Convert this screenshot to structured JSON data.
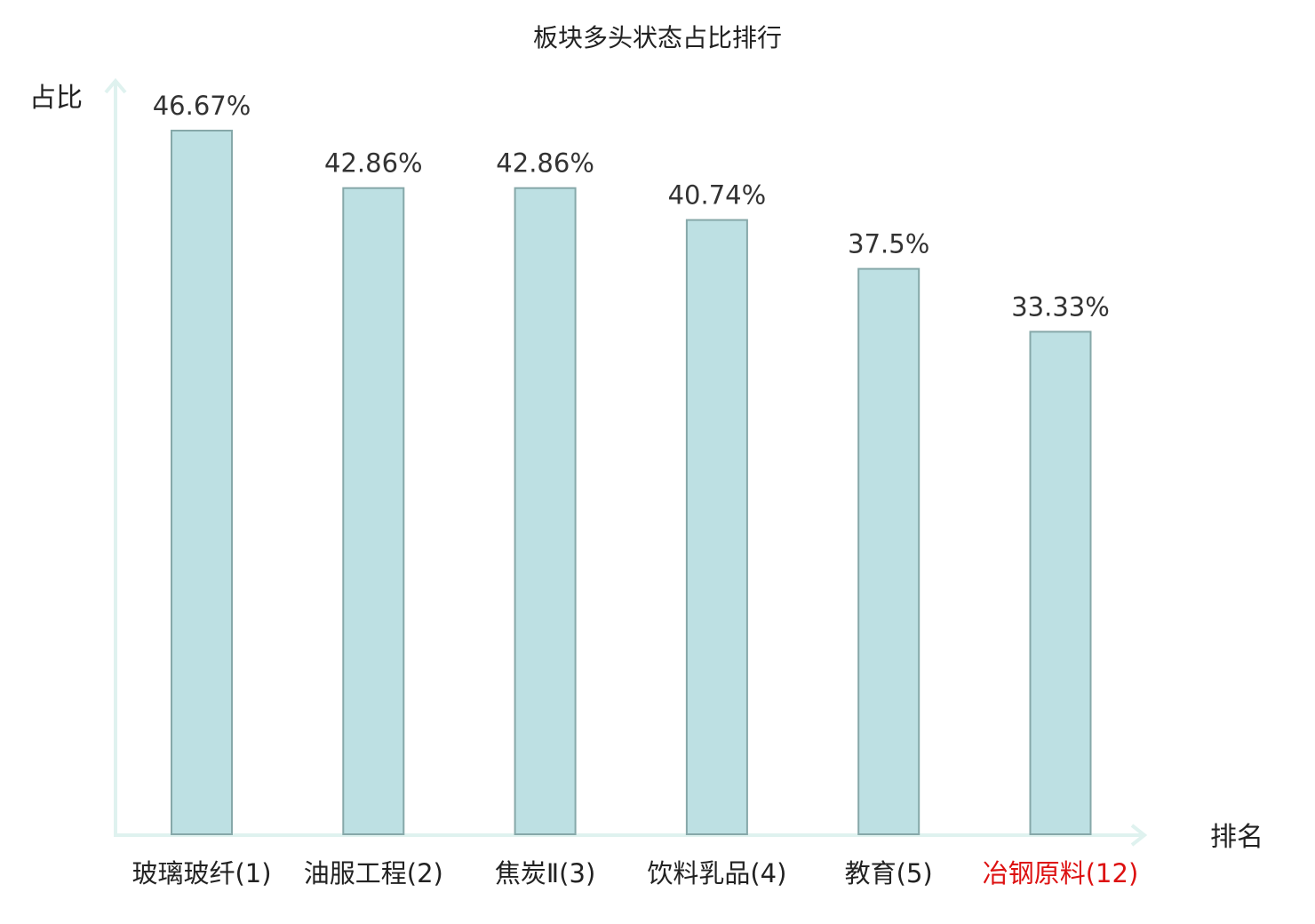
{
  "chart_data": {
    "type": "bar",
    "title": "板块多头状态占比排行",
    "xlabel": "排名",
    "ylabel": "占比",
    "ylim": [
      0,
      50
    ],
    "grid": false,
    "legend": "none",
    "categories": [
      "玻璃玻纤(1)",
      "油服工程(2)",
      "焦炭Ⅱ(3)",
      "饮料乳品(4)",
      "教育(5)",
      "冶钢原料(12)"
    ],
    "values": [
      46.67,
      42.86,
      42.86,
      40.74,
      37.5,
      33.33
    ],
    "value_labels": [
      "46.67%",
      "42.86%",
      "42.86%",
      "40.74%",
      "37.5%",
      "33.33%"
    ],
    "highlight_index": 5
  },
  "colors": {
    "bar_fill": "#bde0e3",
    "bar_stroke": "#86a8a9",
    "axis": "#dff2ef",
    "text": "#222222",
    "value_text": "#333333",
    "highlight": "#dd1111"
  }
}
